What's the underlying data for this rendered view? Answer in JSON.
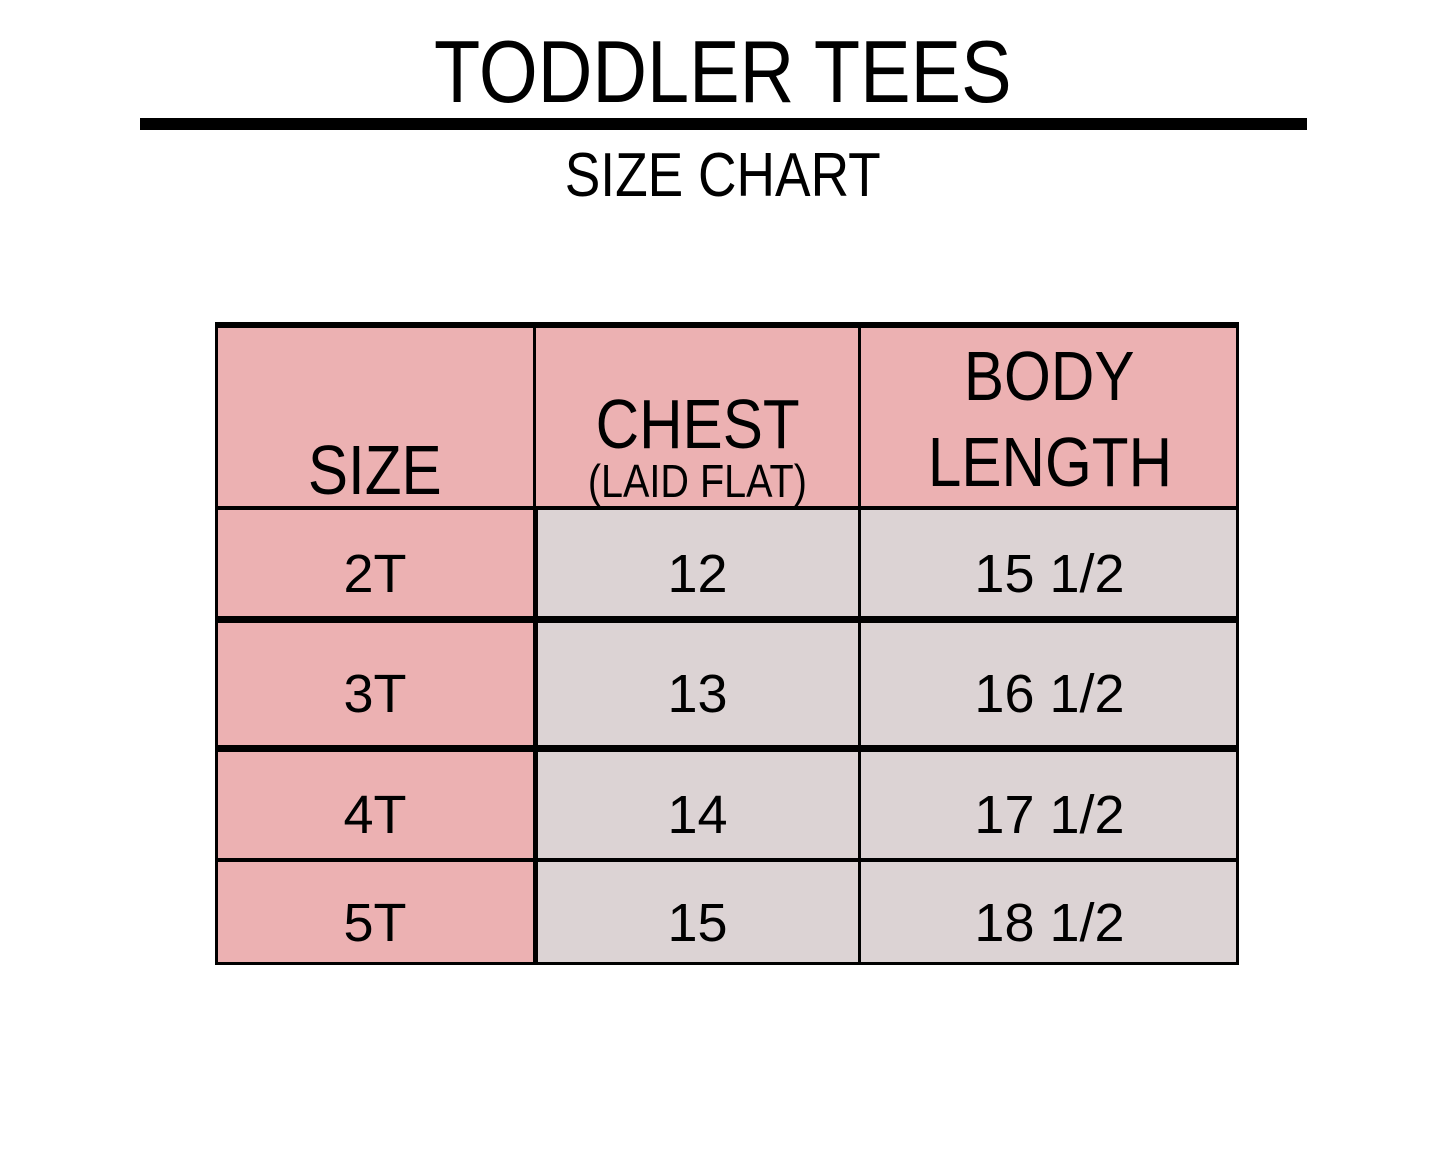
{
  "title": "TODDLER TEES",
  "subtitle": "SIZE CHART",
  "colors": {
    "header_bg": "#ecb1b2",
    "size_bg": "#ecb1b2",
    "value_bg": "#dcd3d4",
    "border": "#000000"
  },
  "table": {
    "headers": [
      {
        "main": "SIZE"
      },
      {
        "main": "CHEST",
        "sub": "(LAID FLAT)"
      },
      {
        "main": "BODY",
        "main2": "LENGTH"
      }
    ],
    "rows": [
      {
        "size": "2T",
        "chest": "12",
        "length": "15 1/2"
      },
      {
        "size": "3T",
        "chest": "13",
        "length": "16 1/2"
      },
      {
        "size": "4T",
        "chest": "14",
        "length": "17 1/2"
      },
      {
        "size": "5T",
        "chest": "15",
        "length": "18 1/2"
      }
    ]
  }
}
